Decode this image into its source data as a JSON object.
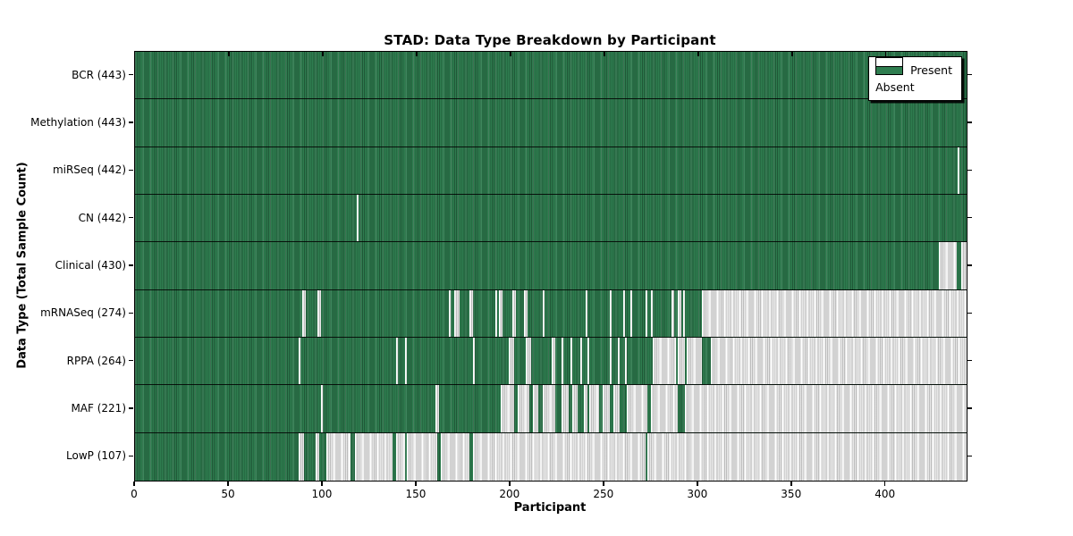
{
  "title": "STAD: Data Type Breakdown by Participant",
  "axis": {
    "xlabel": "Participant",
    "ylabel": "Data Type (Total Sample Count)"
  },
  "legend": {
    "items": [
      {
        "label": "Present",
        "color": "#2e7d4f"
      },
      {
        "label": "Absent",
        "color": "#ffffff"
      }
    ]
  },
  "chart_data": {
    "type": "heatmap",
    "title": "STAD: Data Type Breakdown by Participant",
    "xlabel": "Participant",
    "ylabel": "Data Type (Total Sample Count)",
    "x_range": [
      0,
      443
    ],
    "x_ticks": [
      0,
      50,
      100,
      150,
      200,
      250,
      300,
      350,
      400
    ],
    "legend_position": "upper right",
    "legend_entries": [
      "Present",
      "Absent"
    ],
    "colors": {
      "present": "#2e7d4f",
      "absent": "#ffffff",
      "absent_stripe": "#c9c9c9",
      "row_separator": "#000000"
    },
    "value_encoding": "each row covers participants 0-443; cells are Present (green) unless listed in absent ranges [start,end)",
    "rows": [
      {
        "label": "BCR",
        "count": 443,
        "absent": []
      },
      {
        "label": "Methylation",
        "count": 443,
        "absent": []
      },
      {
        "label": "miRSeq",
        "count": 442,
        "absent": [
          [
            438,
            439
          ]
        ]
      },
      {
        "label": "CN",
        "count": 442,
        "absent": [
          [
            118,
            119
          ]
        ]
      },
      {
        "label": "Clinical",
        "count": 430,
        "absent": [
          [
            428,
            438
          ],
          [
            440,
            443
          ]
        ]
      },
      {
        "label": "mRNASeq",
        "count": 274,
        "absent": [
          [
            89,
            91
          ],
          [
            97,
            99
          ],
          [
            167,
            168
          ],
          [
            170,
            173
          ],
          [
            178,
            180
          ],
          [
            192,
            193
          ],
          [
            194,
            196
          ],
          [
            201,
            203
          ],
          [
            207,
            209
          ],
          [
            217,
            218
          ],
          [
            240,
            241
          ],
          [
            253,
            254
          ],
          [
            260,
            261
          ],
          [
            264,
            265
          ],
          [
            272,
            273
          ],
          [
            275,
            276
          ],
          [
            286,
            287
          ],
          [
            289,
            291
          ],
          [
            292,
            293
          ],
          [
            302,
            443
          ]
        ]
      },
      {
        "label": "RPPA",
        "count": 264,
        "absent": [
          [
            87,
            88
          ],
          [
            139,
            140
          ],
          [
            144,
            145
          ],
          [
            180,
            181
          ],
          [
            199,
            202
          ],
          [
            208,
            211
          ],
          [
            222,
            224
          ],
          [
            227,
            228
          ],
          [
            232,
            233
          ],
          [
            237,
            238
          ],
          [
            241,
            242
          ],
          [
            253,
            254
          ],
          [
            257,
            258
          ],
          [
            261,
            262
          ],
          [
            276,
            288
          ],
          [
            289,
            293
          ],
          [
            294,
            302
          ],
          [
            307,
            443
          ]
        ]
      },
      {
        "label": "MAF",
        "count": 221,
        "absent": [
          [
            99,
            100
          ],
          [
            160,
            162
          ],
          [
            195,
            202
          ],
          [
            204,
            210
          ],
          [
            212,
            215
          ],
          [
            217,
            224
          ],
          [
            227,
            231
          ],
          [
            233,
            236
          ],
          [
            239,
            241
          ],
          [
            242,
            247
          ],
          [
            249,
            253
          ],
          [
            255,
            258
          ],
          [
            262,
            273
          ],
          [
            275,
            289
          ],
          [
            293,
            443
          ]
        ]
      },
      {
        "label": "LowP",
        "count": 107,
        "absent": [
          [
            87,
            90
          ],
          [
            96,
            98
          ],
          [
            102,
            115
          ],
          [
            117,
            137
          ],
          [
            139,
            144
          ],
          [
            145,
            161
          ],
          [
            163,
            178
          ],
          [
            180,
            272
          ],
          [
            273,
            443
          ]
        ]
      }
    ]
  }
}
